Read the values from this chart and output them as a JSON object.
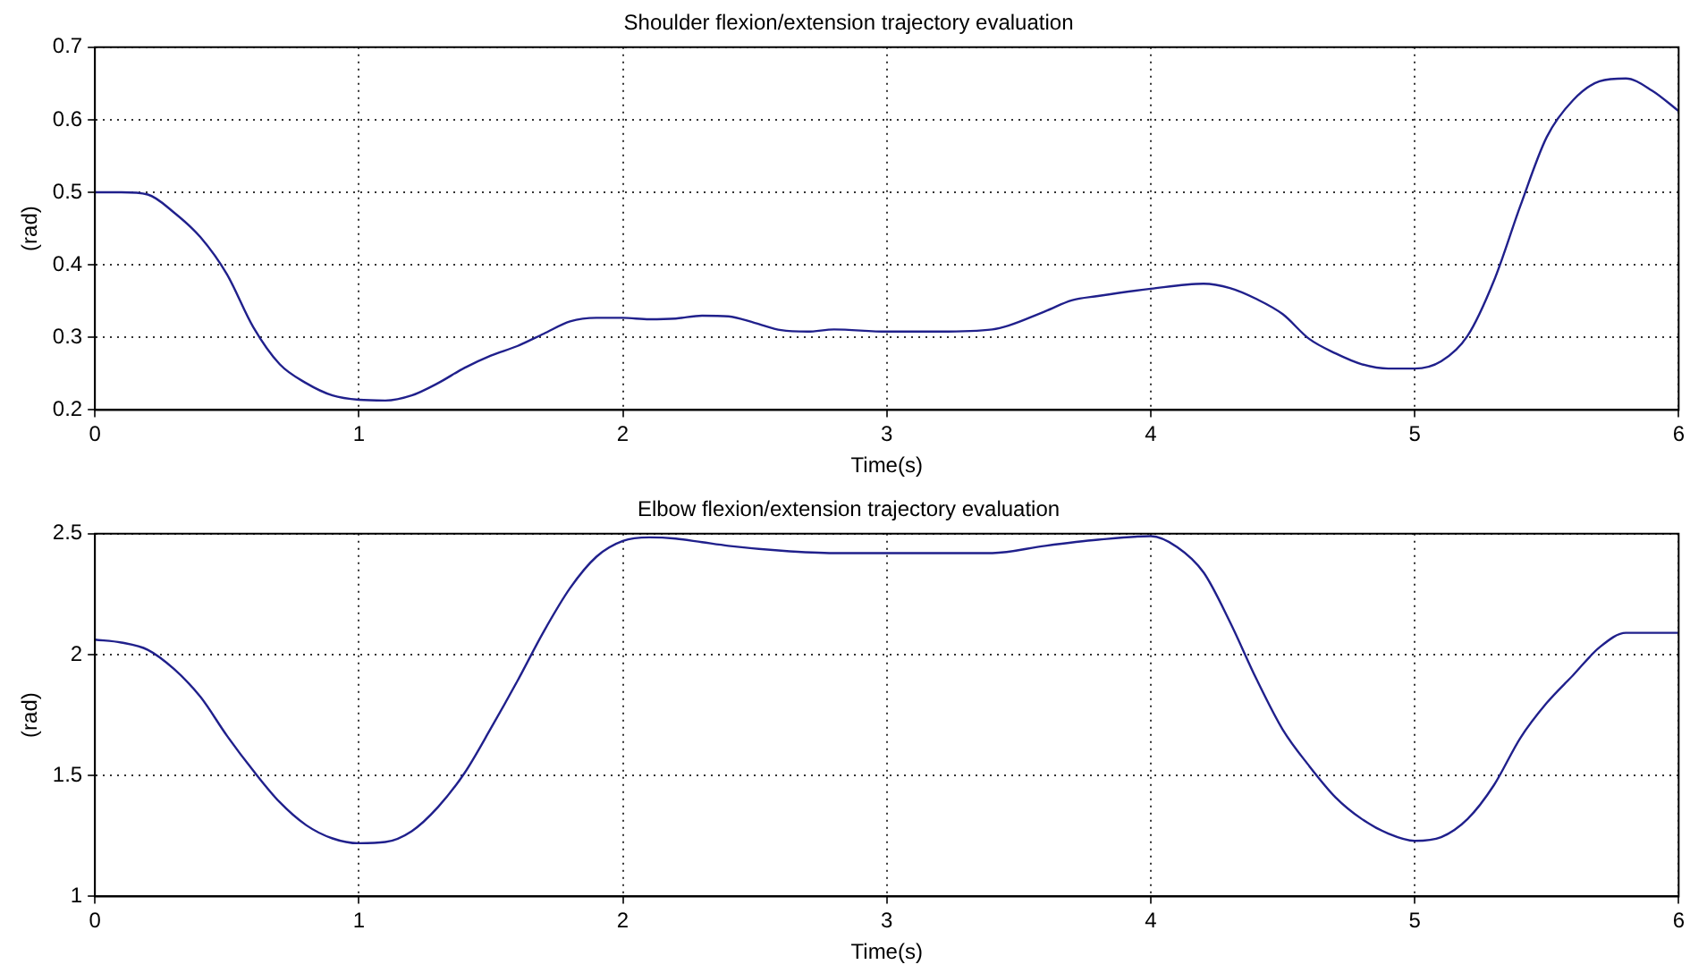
{
  "chart_data": [
    {
      "type": "line",
      "title": "Shoulder flexion/extension trajectory evaluation",
      "xlabel": "Time(s)",
      "ylabel": "(rad)",
      "xlim": [
        0,
        6
      ],
      "xticks": [
        0,
        1,
        2,
        3,
        4,
        5,
        6
      ],
      "ylim": [
        0.2,
        0.7
      ],
      "yticks": [
        0.2,
        0.3,
        0.4,
        0.5,
        0.6,
        0.7
      ],
      "grid": true,
      "legend": false,
      "marker": "none",
      "line_style": "solid",
      "x": [
        0,
        0.1,
        0.2,
        0.3,
        0.4,
        0.5,
        0.6,
        0.7,
        0.8,
        0.9,
        1.0,
        1.1,
        1.2,
        1.3,
        1.4,
        1.5,
        1.6,
        1.7,
        1.8,
        1.9,
        2.0,
        2.1,
        2.2,
        2.3,
        2.4,
        2.5,
        2.6,
        2.7,
        2.8,
        3.0,
        3.2,
        3.4,
        3.6,
        3.7,
        3.8,
        4.0,
        4.2,
        4.3,
        4.4,
        4.5,
        4.6,
        4.7,
        4.8,
        4.9,
        5.0,
        5.1,
        5.2,
        5.3,
        5.4,
        5.5,
        5.6,
        5.7,
        5.8,
        5.9,
        6.0
      ],
      "series": [
        {
          "color": "#20208c",
          "values": [
            0.5,
            0.5,
            0.497,
            0.472,
            0.438,
            0.387,
            0.314,
            0.263,
            0.237,
            0.22,
            0.214,
            0.213,
            0.22,
            0.237,
            0.258,
            0.275,
            0.288,
            0.305,
            0.322,
            0.327,
            0.327,
            0.325,
            0.326,
            0.33,
            0.329,
            0.32,
            0.31,
            0.308,
            0.311,
            0.308,
            0.308,
            0.311,
            0.336,
            0.351,
            0.357,
            0.367,
            0.374,
            0.368,
            0.353,
            0.332,
            0.298,
            0.278,
            0.263,
            0.257,
            0.257,
            0.267,
            0.302,
            0.378,
            0.481,
            0.576,
            0.627,
            0.653,
            0.657,
            0.64,
            0.612
          ]
        }
      ]
    },
    {
      "type": "line",
      "title": "Elbow flexion/extension trajectory evaluation",
      "xlabel": "Time(s)",
      "ylabel": "(rad)",
      "xlim": [
        0,
        6
      ],
      "xticks": [
        0,
        1,
        2,
        3,
        4,
        5,
        6
      ],
      "ylim": [
        1,
        2.5
      ],
      "yticks": [
        1,
        1.5,
        2,
        2.5
      ],
      "grid": true,
      "legend": false,
      "marker": "none",
      "line_style": "solid",
      "x": [
        0,
        0.1,
        0.2,
        0.3,
        0.4,
        0.5,
        0.6,
        0.7,
        0.8,
        0.9,
        1.0,
        1.1,
        1.2,
        1.3,
        1.4,
        1.5,
        1.6,
        1.7,
        1.8,
        1.9,
        2.0,
        2.1,
        2.2,
        2.3,
        2.4,
        2.6,
        2.8,
        3.0,
        3.4,
        3.6,
        3.8,
        4.0,
        4.1,
        4.2,
        4.3,
        4.4,
        4.5,
        4.6,
        4.7,
        4.8,
        4.9,
        5.0,
        5.1,
        5.2,
        5.3,
        5.4,
        5.5,
        5.6,
        5.7,
        5.8,
        5.9,
        6.0
      ],
      "series": [
        {
          "color": "#20208c",
          "values": [
            2.062,
            2.05,
            2.02,
            1.94,
            1.825,
            1.665,
            1.52,
            1.39,
            1.295,
            1.24,
            1.22,
            1.225,
            1.27,
            1.37,
            1.51,
            1.695,
            1.89,
            2.095,
            2.275,
            2.405,
            2.47,
            2.485,
            2.48,
            2.465,
            2.45,
            2.43,
            2.42,
            2.42,
            2.42,
            2.45,
            2.475,
            2.49,
            2.445,
            2.34,
            2.135,
            1.9,
            1.69,
            1.54,
            1.41,
            1.32,
            1.26,
            1.23,
            1.245,
            1.32,
            1.46,
            1.655,
            1.8,
            1.915,
            2.03,
            2.09,
            2.09,
            2.09
          ]
        }
      ]
    }
  ]
}
